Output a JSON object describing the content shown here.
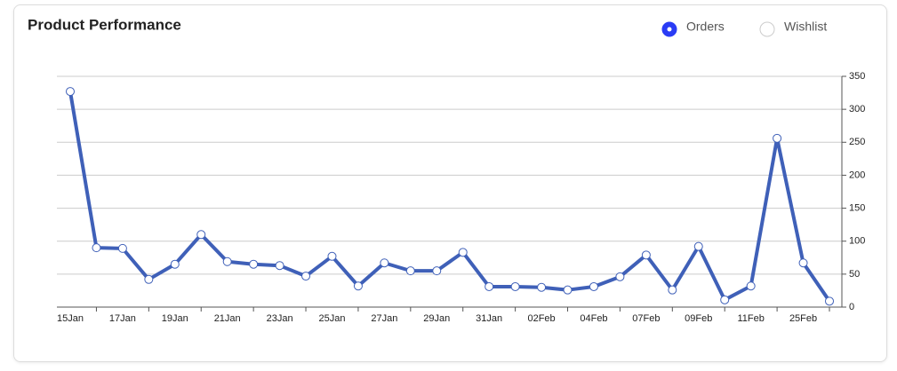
{
  "chart_data": {
    "type": "line",
    "title": "Product Performance",
    "legend": [
      {
        "label": "Orders",
        "selected": true
      },
      {
        "label": "Wishlist",
        "selected": false
      }
    ],
    "categories": [
      "15Jan",
      null,
      "17Jan",
      null,
      "19Jan",
      null,
      "21Jan",
      null,
      "23Jan",
      null,
      "25Jan",
      null,
      "27Jan",
      null,
      "29Jan",
      null,
      "31Jan",
      null,
      "02Feb",
      null,
      "04Feb",
      null,
      "07Feb",
      null,
      "09Feb",
      null,
      "11Feb",
      null,
      "25Feb",
      null
    ],
    "series": [
      {
        "name": "Orders",
        "color": "#3f60b8",
        "values": [
          327,
          90,
          89,
          42,
          65,
          110,
          69,
          65,
          63,
          47,
          77,
          32,
          67,
          55,
          55,
          83,
          31,
          31,
          30,
          26,
          31,
          46,
          79,
          26,
          92,
          11,
          32,
          256,
          67,
          9
        ]
      }
    ],
    "ylim": [
      0,
      350
    ],
    "yticks": [
      0,
      50,
      100,
      150,
      200,
      250,
      300,
      350
    ],
    "grid": true
  }
}
